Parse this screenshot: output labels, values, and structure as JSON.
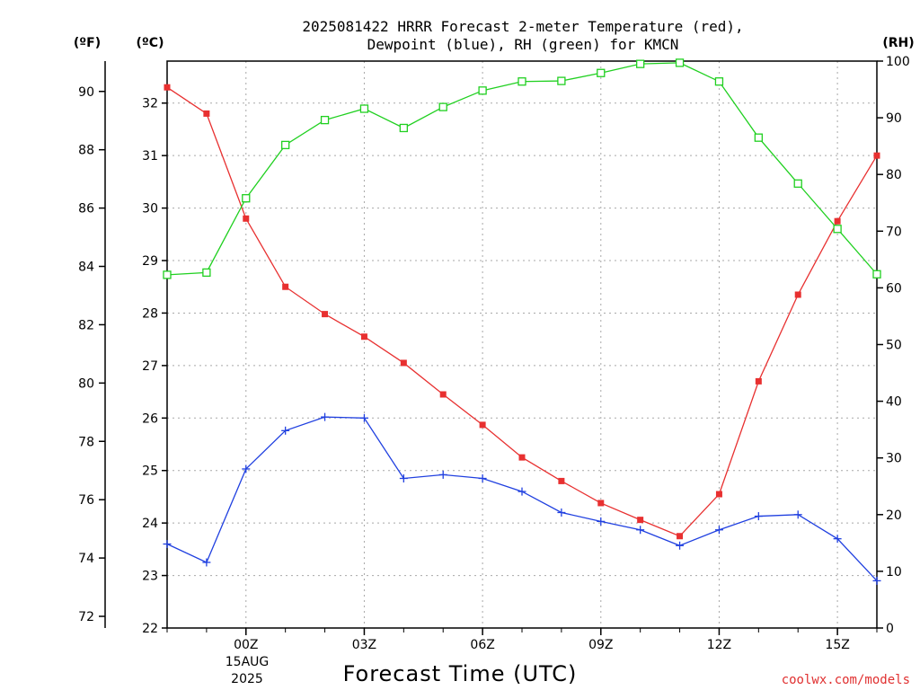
{
  "chart_data": {
    "type": "line",
    "title_line1": "2025081422 HRRR Forecast 2-meter Temperature (red),",
    "title_line2": "Dewpoint (blue), RH (green) for KMCN",
    "xlabel": "Forecast Time (UTC)",
    "credit": "coolwx.com/models",
    "unit_left_f": "(ºF)",
    "unit_left_c": "(ºC)",
    "unit_right": "(RH)",
    "x_hours": [
      22,
      23,
      24,
      25,
      26,
      27,
      28,
      29,
      30,
      31,
      32,
      33,
      34,
      35,
      36,
      37,
      38,
      39,
      40
    ],
    "xlim": [
      22,
      40
    ],
    "x_ticks": [
      {
        "hour": 24,
        "label": "00Z"
      },
      {
        "hour": 27,
        "label": "03Z"
      },
      {
        "hour": 30,
        "label": "06Z"
      },
      {
        "hour": 33,
        "label": "09Z"
      },
      {
        "hour": 36,
        "label": "12Z"
      },
      {
        "hour": 39,
        "label": "15Z"
      }
    ],
    "date_label_day": "15AUG",
    "date_label_year": "2025",
    "c_axis": {
      "min": 22,
      "max": 32.8,
      "ticks": [
        22,
        23,
        24,
        25,
        26,
        27,
        28,
        29,
        30,
        31,
        32
      ]
    },
    "f_axis": {
      "ticks": [
        72,
        74,
        76,
        78,
        80,
        82,
        84,
        86,
        88,
        90
      ]
    },
    "rh_axis": {
      "min": 0,
      "max": 100,
      "ticks": [
        0,
        10,
        20,
        30,
        40,
        50,
        60,
        70,
        80,
        90,
        100
      ]
    },
    "series": [
      {
        "name": "Temperature",
        "unit": "C",
        "color": "#e83030",
        "marker": "filled-square",
        "values": [
          32.3,
          31.8,
          29.8,
          28.5,
          27.98,
          27.55,
          27.05,
          26.45,
          25.87,
          25.25,
          24.8,
          24.38,
          24.06,
          23.75,
          24.55,
          26.7,
          28.35,
          29.75,
          31.0
        ]
      },
      {
        "name": "Dewpoint",
        "unit": "C",
        "color": "#2040e0",
        "marker": "plus",
        "values": [
          23.6,
          23.25,
          25.03,
          25.76,
          26.02,
          26.0,
          24.85,
          24.92,
          24.85,
          24.6,
          24.2,
          24.03,
          23.87,
          23.57,
          23.87,
          24.13,
          24.16,
          23.7,
          22.9
        ]
      },
      {
        "name": "RH",
        "unit": "%",
        "color": "#20d020",
        "marker": "open-square",
        "values": [
          62.3,
          62.7,
          75.8,
          85.2,
          89.6,
          91.6,
          88.2,
          91.9,
          94.8,
          96.4,
          96.5,
          97.9,
          99.5,
          99.7,
          96.4,
          86.5,
          78.4,
          70.4,
          62.4
        ]
      }
    ],
    "grid": true
  }
}
